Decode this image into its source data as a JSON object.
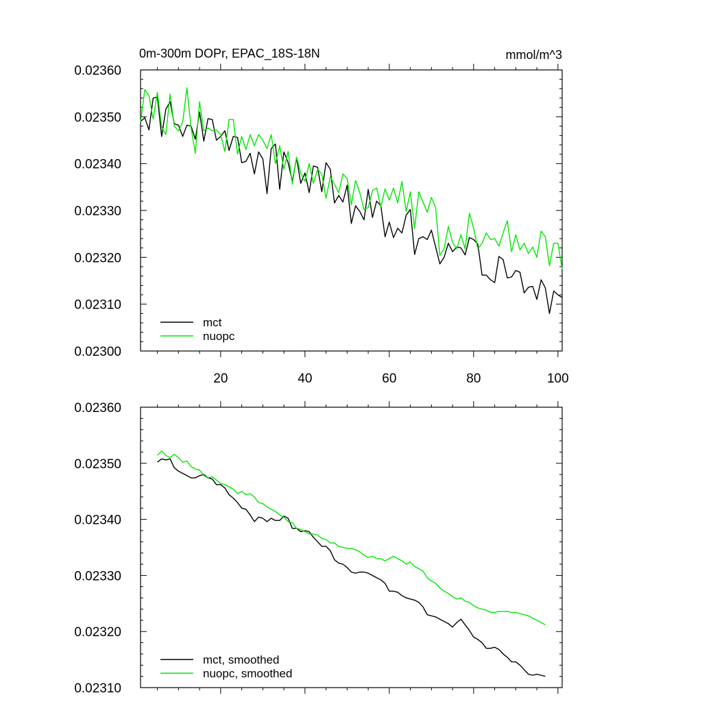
{
  "chart_data": [
    {
      "type": "line",
      "title": "0m-300m DOPr, EPAC_18S-18N",
      "units": "mmol/m^3",
      "xlim": [
        1,
        101
      ],
      "ylim": [
        0.023,
        0.0236
      ],
      "xticks": [
        20,
        40,
        60,
        80,
        100
      ],
      "yticks": [
        0.023,
        0.0231,
        0.0232,
        0.0233,
        0.0234,
        0.0235,
        0.0236
      ],
      "ytick_labels": [
        "0.02300",
        "0.02310",
        "0.02320",
        "0.02330",
        "0.02340",
        "0.02350",
        "0.02360"
      ],
      "legend_position": "bottom-left",
      "series": [
        {
          "name": "mct",
          "color": "#000000",
          "x": [
            1,
            2,
            3,
            4,
            5,
            6,
            7,
            8,
            9,
            10,
            11,
            12,
            13,
            14,
            15,
            16,
            17,
            18,
            19,
            20,
            21,
            22,
            23,
            24,
            25,
            26,
            27,
            28,
            29,
            30,
            31,
            32,
            33,
            34,
            35,
            36,
            37,
            38,
            39,
            40,
            41,
            42,
            43,
            44,
            45,
            46,
            47,
            48,
            49,
            50,
            51,
            52,
            53,
            54,
            55,
            56,
            57,
            58,
            59,
            60,
            61,
            62,
            63,
            64,
            65,
            66,
            67,
            68,
            69,
            70,
            71,
            72,
            73,
            74,
            75,
            76,
            77,
            78,
            79,
            80,
            81,
            82,
            83,
            84,
            85,
            86,
            87,
            88,
            89,
            90,
            91,
            92,
            93,
            94,
            95,
            96,
            97,
            98,
            99,
            100,
            101
          ],
          "values": [
            0.02349,
            0.023498,
            0.023472,
            0.02354,
            0.023542,
            0.023458,
            0.023516,
            0.023532,
            0.023485,
            0.023482,
            0.023458,
            0.023482,
            0.02348,
            0.023452,
            0.02351,
            0.023448,
            0.023496,
            0.023494,
            0.02345,
            0.023458,
            0.02347,
            0.023428,
            0.023458,
            0.023456,
            0.023402,
            0.023405,
            0.023422,
            0.023378,
            0.023425,
            0.02341,
            0.023336,
            0.023432,
            0.023442,
            0.023345,
            0.023425,
            0.023402,
            0.023362,
            0.023412,
            0.023358,
            0.02338,
            0.023338,
            0.023395,
            0.023392,
            0.02334,
            0.023402,
            0.023388,
            0.023316,
            0.023332,
            0.023318,
            0.023354,
            0.023272,
            0.02331,
            0.023298,
            0.02328,
            0.023345,
            0.023285,
            0.02332,
            0.02331,
            0.023244,
            0.023275,
            0.023242,
            0.023262,
            0.023252,
            0.02329,
            0.023302,
            0.023206,
            0.02324,
            0.023244,
            0.023238,
            0.023258,
            0.023222,
            0.023186,
            0.0232,
            0.02323,
            0.023212,
            0.023222,
            0.02322,
            0.023205,
            0.023242,
            0.023238,
            0.023228,
            0.023162,
            0.023162,
            0.023152,
            0.023146,
            0.023202,
            0.023195,
            0.023156,
            0.023158,
            0.023172,
            0.023168,
            0.023124,
            0.023136,
            0.023138,
            0.02311,
            0.023152,
            0.023135,
            0.02308,
            0.023128,
            0.02312,
            0.023114
          ]
        },
        {
          "name": "nuopc",
          "color": "#00e600",
          "x": [
            1,
            2,
            3,
            4,
            5,
            6,
            7,
            8,
            9,
            10,
            11,
            12,
            13,
            14,
            15,
            16,
            17,
            18,
            19,
            20,
            21,
            22,
            23,
            24,
            25,
            26,
            27,
            28,
            29,
            30,
            31,
            32,
            33,
            34,
            35,
            36,
            37,
            38,
            39,
            40,
            41,
            42,
            43,
            44,
            45,
            46,
            47,
            48,
            49,
            50,
            51,
            52,
            53,
            54,
            55,
            56,
            57,
            58,
            59,
            60,
            61,
            62,
            63,
            64,
            65,
            66,
            67,
            68,
            69,
            70,
            71,
            72,
            73,
            74,
            75,
            76,
            77,
            78,
            79,
            80,
            81,
            82,
            83,
            84,
            85,
            86,
            87,
            88,
            89,
            90,
            91,
            92,
            93,
            94,
            95,
            96,
            97,
            98,
            99,
            100,
            101
          ],
          "values": [
            0.023488,
            0.023558,
            0.023545,
            0.023495,
            0.023552,
            0.023478,
            0.023462,
            0.023548,
            0.02348,
            0.02347,
            0.023488,
            0.023562,
            0.023476,
            0.023422,
            0.023532,
            0.02347,
            0.023476,
            0.02347,
            0.023472,
            0.023462,
            0.023426,
            0.023494,
            0.023494,
            0.02342,
            0.023458,
            0.02343,
            0.023462,
            0.023438,
            0.023462,
            0.02345,
            0.023432,
            0.023462,
            0.0234,
            0.023438,
            0.023388,
            0.023426,
            0.023356,
            0.023414,
            0.02338,
            0.023362,
            0.0234,
            0.023358,
            0.023388,
            0.023378,
            0.023326,
            0.023372,
            0.023356,
            0.023338,
            0.023378,
            0.023368,
            0.023312,
            0.023364,
            0.023338,
            0.023302,
            0.023306,
            0.023342,
            0.023348,
            0.023308,
            0.023346,
            0.023322,
            0.023348,
            0.023316,
            0.023362,
            0.023298,
            0.02334,
            0.023262,
            0.02334,
            0.023318,
            0.023296,
            0.023328,
            0.023306,
            0.023204,
            0.023218,
            0.023266,
            0.023232,
            0.023218,
            0.023248,
            0.023218,
            0.023294,
            0.023262,
            0.023218,
            0.02323,
            0.023252,
            0.023238,
            0.02324,
            0.023224,
            0.023252,
            0.023278,
            0.023212,
            0.023248,
            0.023216,
            0.02323,
            0.023208,
            0.023222,
            0.0232,
            0.023256,
            0.023244,
            0.023182,
            0.02323,
            0.02323,
            0.023174
          ]
        }
      ]
    },
    {
      "type": "line",
      "title": "",
      "units": "",
      "xlim": [
        1,
        101
      ],
      "ylim": [
        0.0231,
        0.0236
      ],
      "xticks": [
        20,
        40,
        60,
        80,
        100
      ],
      "yticks": [
        0.0231,
        0.0232,
        0.0233,
        0.0234,
        0.0235,
        0.0236
      ],
      "ytick_labels": [
        "0.02310",
        "0.02320",
        "0.02330",
        "0.02340",
        "0.02350",
        "0.02360"
      ],
      "legend_position": "bottom-left",
      "series": [
        {
          "name": "mct, smoothed",
          "color": "#000000",
          "x": [
            5,
            6,
            7,
            8,
            9,
            10,
            11,
            12,
            13,
            14,
            15,
            16,
            17,
            18,
            19,
            20,
            21,
            22,
            23,
            24,
            25,
            26,
            27,
            28,
            29,
            30,
            31,
            32,
            33,
            34,
            35,
            36,
            37,
            38,
            39,
            40,
            41,
            42,
            43,
            44,
            45,
            46,
            47,
            48,
            49,
            50,
            51,
            52,
            53,
            54,
            55,
            56,
            57,
            58,
            59,
            60,
            61,
            62,
            63,
            64,
            65,
            66,
            67,
            68,
            69,
            70,
            71,
            72,
            73,
            74,
            75,
            76,
            77,
            78,
            79,
            80,
            81,
            82,
            83,
            84,
            85,
            86,
            87,
            88,
            89,
            90,
            91,
            92,
            93,
            94,
            95,
            96,
            97
          ],
          "values": [
            0.023502,
            0.023508,
            0.023506,
            0.023508,
            0.023492,
            0.023486,
            0.023482,
            0.023478,
            0.023474,
            0.023474,
            0.023478,
            0.02348,
            0.023474,
            0.023472,
            0.023462,
            0.023462,
            0.023456,
            0.023444,
            0.023438,
            0.02343,
            0.02342,
            0.023418,
            0.023408,
            0.023396,
            0.023404,
            0.023402,
            0.023396,
            0.023402,
            0.023398,
            0.023398,
            0.023406,
            0.023402,
            0.023384,
            0.023384,
            0.023378,
            0.02338,
            0.023378,
            0.023368,
            0.02336,
            0.023352,
            0.023352,
            0.023344,
            0.023328,
            0.023322,
            0.02332,
            0.023314,
            0.023306,
            0.023304,
            0.023306,
            0.023306,
            0.023304,
            0.0233,
            0.023296,
            0.023292,
            0.023286,
            0.023272,
            0.023272,
            0.02327,
            0.023264,
            0.02326,
            0.023258,
            0.023256,
            0.023252,
            0.023244,
            0.02323,
            0.023228,
            0.023226,
            0.023222,
            0.023218,
            0.023214,
            0.023208,
            0.023216,
            0.023222,
            0.023212,
            0.023202,
            0.02319,
            0.023186,
            0.02318,
            0.02317,
            0.02317,
            0.023172,
            0.023168,
            0.02316,
            0.023154,
            0.023146,
            0.023146,
            0.02314,
            0.023132,
            0.023124,
            0.023122,
            0.023124,
            0.023122,
            0.02312
          ]
        },
        {
          "name": "nuopc, smoothed",
          "color": "#00e600",
          "x": [
            5,
            6,
            7,
            8,
            9,
            10,
            11,
            12,
            13,
            14,
            15,
            16,
            17,
            18,
            19,
            20,
            21,
            22,
            23,
            24,
            25,
            26,
            27,
            28,
            29,
            30,
            31,
            32,
            33,
            34,
            35,
            36,
            37,
            38,
            39,
            40,
            41,
            42,
            43,
            44,
            45,
            46,
            47,
            48,
            49,
            50,
            51,
            52,
            53,
            54,
            55,
            56,
            57,
            58,
            59,
            60,
            61,
            62,
            63,
            64,
            65,
            66,
            67,
            68,
            69,
            70,
            71,
            72,
            73,
            74,
            75,
            76,
            77,
            78,
            79,
            80,
            81,
            82,
            83,
            84,
            85,
            86,
            87,
            88,
            89,
            90,
            91,
            92,
            93,
            94,
            95,
            96,
            97
          ],
          "values": [
            0.023514,
            0.023522,
            0.023514,
            0.02351,
            0.023516,
            0.02351,
            0.023502,
            0.023504,
            0.023494,
            0.02349,
            0.023488,
            0.023478,
            0.023474,
            0.023476,
            0.02347,
            0.023464,
            0.023462,
            0.023458,
            0.023454,
            0.023446,
            0.02345,
            0.023444,
            0.023446,
            0.02344,
            0.02343,
            0.023428,
            0.023422,
            0.023418,
            0.023414,
            0.023408,
            0.023404,
            0.023396,
            0.023394,
            0.023384,
            0.023382,
            0.023378,
            0.023374,
            0.023374,
            0.023372,
            0.023366,
            0.023364,
            0.023358,
            0.023358,
            0.023352,
            0.02335,
            0.023348,
            0.023348,
            0.023346,
            0.023342,
            0.023336,
            0.023332,
            0.023334,
            0.02333,
            0.02333,
            0.023326,
            0.02333,
            0.023334,
            0.02333,
            0.023326,
            0.02332,
            0.023324,
            0.023316,
            0.023312,
            0.023308,
            0.023296,
            0.02329,
            0.023286,
            0.023278,
            0.023272,
            0.023268,
            0.023262,
            0.023258,
            0.02326,
            0.023254,
            0.023252,
            0.023246,
            0.023242,
            0.02324,
            0.023238,
            0.023234,
            0.023234,
            0.023236,
            0.023236,
            0.023236,
            0.023234,
            0.023234,
            0.023232,
            0.02323,
            0.023228,
            0.023224,
            0.02322,
            0.023216,
            0.023212
          ]
        }
      ]
    }
  ]
}
